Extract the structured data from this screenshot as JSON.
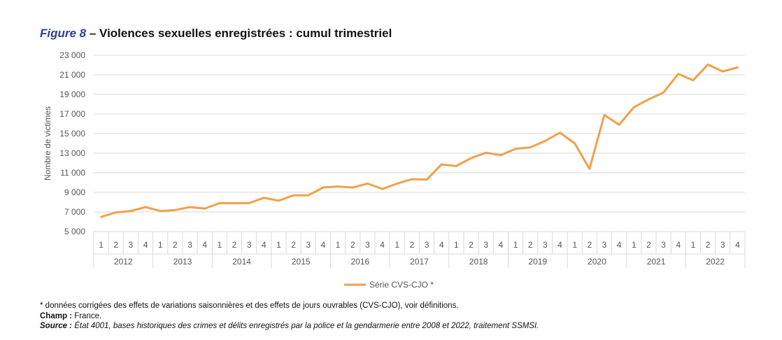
{
  "title": {
    "figure": "Figure 8",
    "dash": " – ",
    "text": "Violences sexuelles enregistrées : cumul trimestriel"
  },
  "notes": {
    "asterisk": "* données corrigées des effets de variations saisonnières et des effets de jours ouvrables (CVS-CJO), voir définitions.",
    "champ_label": "Champ :",
    "champ_text": " France.",
    "source_label": "Source :",
    "source_text": " État 4001, bases historiques des crimes et délits enregistrés par la police et la gendarmerie entre 2008 et 2022, traitement SSMSI."
  },
  "chart_data": {
    "type": "line",
    "title": "Violences sexuelles enregistrées : cumul trimestriel",
    "ylabel": "Nombre de victimes",
    "xlabel": "",
    "ylim": [
      5000,
      23000
    ],
    "yticks": [
      5000,
      7000,
      9000,
      11000,
      13000,
      15000,
      17000,
      19000,
      21000,
      23000
    ],
    "ytick_labels": [
      "5 000",
      "7 000",
      "9 000",
      "11 000",
      "13 000",
      "15 000",
      "17 000",
      "19 000",
      "21 000",
      "23 000"
    ],
    "grid": true,
    "legend": "bottom-center",
    "years": [
      "2012",
      "2013",
      "2014",
      "2015",
      "2016",
      "2017",
      "2018",
      "2019",
      "2020",
      "2021",
      "2022"
    ],
    "quarters": [
      "1",
      "2",
      "3",
      "4"
    ],
    "color": "#f0a04b",
    "series": [
      {
        "name": "Série CVS-CJO *",
        "values": [
          6500,
          6950,
          7100,
          7500,
          7100,
          7200,
          7500,
          7350,
          7900,
          7900,
          7900,
          8450,
          8150,
          8700,
          8700,
          9500,
          9600,
          9500,
          9900,
          9350,
          9900,
          10350,
          10300,
          11850,
          11700,
          12500,
          13050,
          12800,
          13450,
          13600,
          14250,
          15100,
          14000,
          11400,
          16900,
          15900,
          17700,
          18500,
          19200,
          21100,
          20450,
          22050,
          21350,
          21750
        ]
      }
    ]
  }
}
